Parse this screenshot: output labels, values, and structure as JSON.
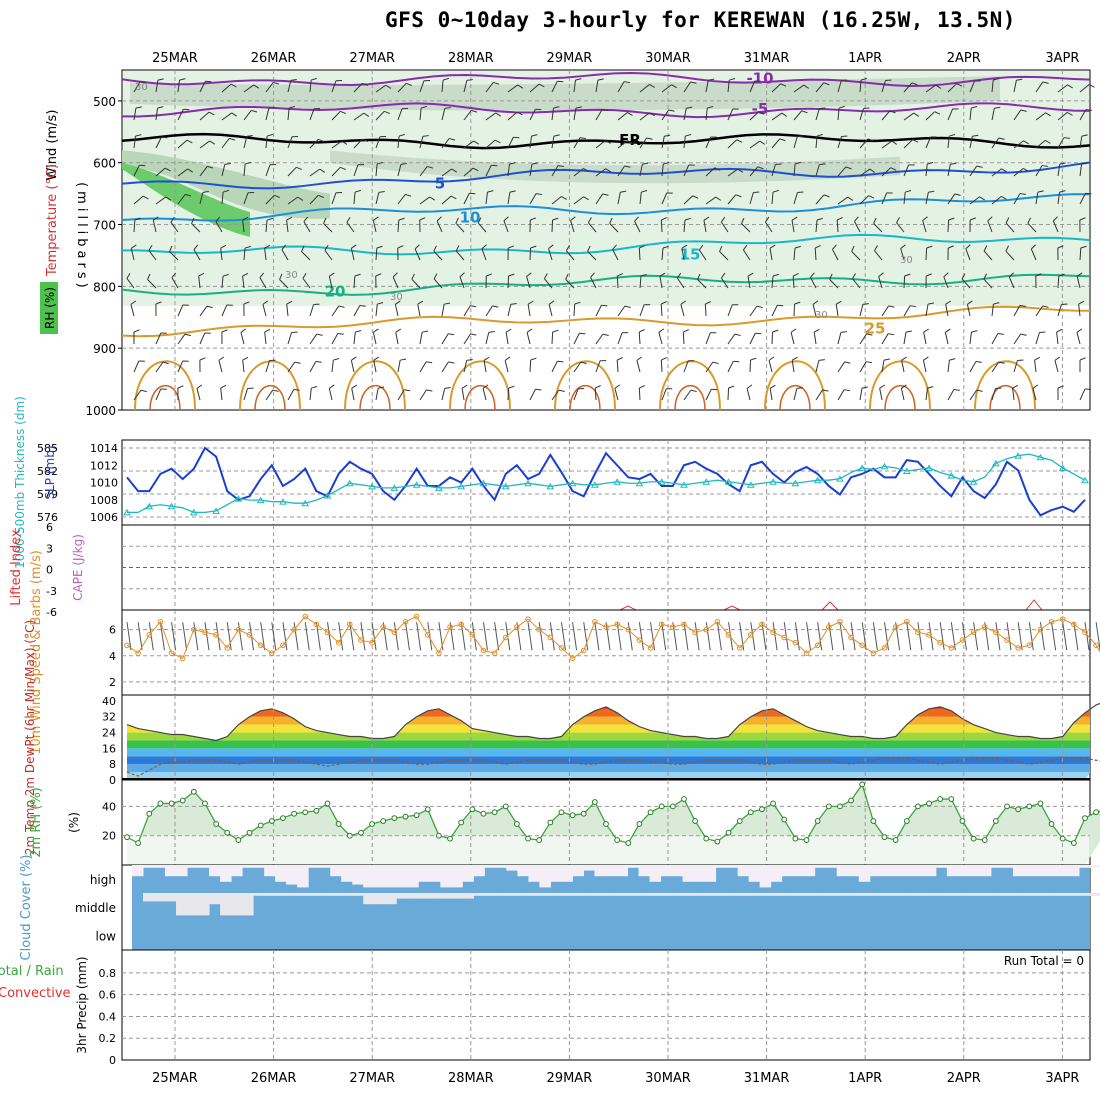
{
  "title": "GFS 0~10day 3-hourly for KEREWAN (16.25W, 13.5N)",
  "dates": [
    "25MAR",
    "26MAR",
    "27MAR",
    "28MAR",
    "29MAR",
    "30MAR",
    "31MAR",
    "1APR",
    "2APR",
    "3APR"
  ],
  "colors": {
    "wind_rh_green": "#4fc14f",
    "slp": "#1a3fd0",
    "thickness": "#20b8c0",
    "lifted_index": "#e03030",
    "cape": "#c060c0",
    "wind_speed": "#e0902a",
    "rh2m": "#3aa83a",
    "cloud": "#6aaad8",
    "precip_total": "#3aa83a",
    "precip_conv": "#e03030"
  },
  "chart_data": [
    {
      "panel": "upper_air",
      "type": "heatmap",
      "ylabel": "(millibars)",
      "side_labels": [
        "Wind (m/s)",
        "Temperature (°C)",
        "RH (%)"
      ],
      "ylim": [
        1000,
        450
      ],
      "yticks": [
        500,
        600,
        700,
        800,
        900,
        1000
      ],
      "isotherms": [
        {
          "label": "-10",
          "level_mb": 465,
          "color": "#8a2ab0"
        },
        {
          "label": "-5",
          "level_mb": 515,
          "color": "#8a2ab0"
        },
        {
          "label": "FR",
          "level_mb": 565,
          "color": "#000000"
        },
        {
          "label": "5",
          "level_mb": 635,
          "color": "#2050d0"
        },
        {
          "label": "10",
          "level_mb": 690,
          "color": "#1a90d8"
        },
        {
          "label": "15",
          "level_mb": 750,
          "color": "#18b8c8"
        },
        {
          "label": "20",
          "level_mb": 810,
          "color": "#18b080"
        },
        {
          "label": "25",
          "level_mb": 870,
          "color": "#d89a2a"
        }
      ],
      "rh_labels": [
        "30",
        "30",
        "30",
        "30",
        "30"
      ]
    },
    {
      "panel": "slp_thickness",
      "type": "line",
      "ylabel_left": "1000-500mb Thickness (dm)",
      "ylabel_right": "SLP (mb)",
      "thickness_ticks": [
        576,
        579,
        582,
        585
      ],
      "slp_ticks": [
        1006,
        1008,
        1010,
        1012,
        1014
      ],
      "slp_values": [
        1010.6,
        1009,
        1009,
        1011,
        1011.6,
        1010.4,
        1011.6,
        1014,
        1013,
        1009,
        1008,
        1008.4,
        1010.4,
        1012,
        1009.6,
        1010.4,
        1011.6,
        1009,
        1008.4,
        1011,
        1012.4,
        1011.6,
        1011,
        1009,
        1008,
        1009.6,
        1011.6,
        1009.6,
        1009.6,
        1010.6,
        1010,
        1011.6,
        1009.6,
        1008,
        1011,
        1012,
        1010.4,
        1011,
        1013.2,
        1011.2,
        1009,
        1008.4,
        1011,
        1013.4,
        1012,
        1010.6,
        1010.4,
        1011,
        1009.6,
        1009.6,
        1012,
        1012.4,
        1011.6,
        1011,
        1009.8,
        1009,
        1012,
        1012.4,
        1011,
        1010,
        1011.2,
        1011.8,
        1011,
        1009.6,
        1008.6,
        1010.6,
        1011,
        1011.6,
        1010.6,
        1010.6,
        1012.6,
        1012.4,
        1011,
        1009.6,
        1008.4,
        1010.6,
        1009,
        1008.2,
        1009.8,
        1012.4,
        1011.4,
        1008,
        1006.2,
        1006.8,
        1007.2,
        1006.6,
        1008
      ],
      "thickness_values": [
        576.6,
        576.6,
        577.4,
        577.6,
        577.4,
        577.2,
        576.6,
        576.6,
        576.8,
        577.6,
        578.4,
        578.2,
        578.2,
        578,
        578,
        577.8,
        577.8,
        578.2,
        578.8,
        579.6,
        580.4,
        580.2,
        580,
        579.8,
        579.8,
        580,
        580.2,
        580,
        579.8,
        579.8,
        580,
        580.2,
        580.4,
        580.2,
        580,
        580.2,
        580.4,
        580.2,
        580,
        580.2,
        580.4,
        580.2,
        580.2,
        580.4,
        580.6,
        580.4,
        580.4,
        580.6,
        580.6,
        580.4,
        580.2,
        580.4,
        580.6,
        580.8,
        580.6,
        580.4,
        580.2,
        580.4,
        580.6,
        580.4,
        580.4,
        580.6,
        580.8,
        580.8,
        581,
        581.8,
        582.4,
        582.2,
        582.6,
        582.4,
        582,
        582.2,
        582.4,
        581.8,
        581.4,
        580.8,
        580.6,
        581.2,
        583,
        583.6,
        584,
        584.2,
        583.8,
        583.4,
        582.4,
        581.6,
        580.8
      ]
    },
    {
      "panel": "stability",
      "type": "line",
      "ylabel_left": "Lifted Index",
      "ylabel_right": "CAPE (J/kg)",
      "yticks": [
        "6",
        "3",
        "0",
        "-3",
        "-6"
      ],
      "ylim": [
        6,
        -6
      ],
      "lifted_index_values": []
    },
    {
      "panel": "wind10m",
      "type": "line",
      "ylabel": "10m Wind Speed & Barbs (m/s)",
      "yticks": [
        2,
        4,
        6
      ],
      "ylim": [
        1,
        7.5
      ],
      "values": [
        4.8,
        4.2,
        5.6,
        6.6,
        4.2,
        3.8,
        6,
        5.8,
        5.6,
        4.6,
        6,
        5.6,
        4.8,
        4.2,
        4.8,
        6,
        7,
        6.4,
        5.8,
        5,
        6.4,
        5.2,
        5,
        6.2,
        5.8,
        6.6,
        7,
        5.6,
        4.2,
        6.2,
        6.4,
        5.6,
        4.4,
        4.2,
        5.4,
        6.2,
        6.8,
        6,
        5.4,
        4.6,
        3.8,
        4.4,
        6.6,
        6.2,
        6.4,
        6,
        5.2,
        4.6,
        6.4,
        6.2,
        6.4,
        5.8,
        6,
        6.6,
        5.6,
        4.6,
        5.6,
        6.4,
        5.8,
        5.4,
        5,
        4.2,
        4.8,
        6.2,
        6.6,
        5.4,
        4.8,
        4.2,
        4.6,
        6.2,
        6.6,
        5.8,
        5.6,
        5,
        4.6,
        5.2,
        5.8,
        6.2,
        5.8,
        5.2,
        4.6,
        4.8,
        6,
        6.6,
        6.8,
        6.4,
        5.8,
        4.8,
        3.4,
        2.2,
        1.4
      ]
    },
    {
      "panel": "temperature",
      "type": "area",
      "ylabel": "2m Temp 2m DewPt (6hr Min/Max) (°C)",
      "yticks": [
        0,
        8,
        16,
        24,
        32,
        40
      ],
      "ylim": [
        0,
        43
      ],
      "temp_values": [
        28,
        26,
        25,
        24,
        23,
        23,
        22,
        21,
        20,
        22,
        28,
        32,
        35,
        36,
        34,
        31,
        27,
        25,
        24,
        23,
        22,
        22,
        21,
        21,
        22,
        28,
        32,
        35,
        36,
        33,
        30,
        26,
        25,
        24,
        23,
        22,
        22,
        21,
        21,
        22,
        28,
        32,
        35,
        37,
        34,
        30,
        27,
        25,
        24,
        23,
        22,
        22,
        21,
        21,
        22,
        28,
        32,
        35,
        36,
        33,
        30,
        27,
        25,
        24,
        23,
        22,
        22,
        21,
        21,
        22,
        28,
        33,
        36,
        37,
        35,
        31,
        28,
        26,
        24,
        23,
        22,
        22,
        21,
        21,
        22,
        29,
        34,
        38,
        40,
        37,
        32
      ],
      "dewpoint_values": [
        4,
        2,
        5,
        8,
        9,
        9,
        10,
        10,
        10,
        9,
        8,
        9,
        10,
        10,
        10,
        10,
        9,
        8,
        7,
        8,
        9,
        10,
        10,
        10,
        10,
        9,
        8,
        8,
        9,
        10,
        10,
        10,
        10,
        9,
        8,
        9,
        10,
        10,
        10,
        10,
        9,
        8,
        8,
        9,
        10,
        10,
        10,
        9,
        9,
        8,
        8,
        9,
        10,
        10,
        10,
        10,
        9,
        8,
        8,
        9,
        10,
        10,
        10,
        10,
        9,
        8,
        9,
        10,
        11,
        11,
        11,
        10,
        9,
        8,
        9,
        10,
        11,
        11,
        11,
        10,
        9,
        8,
        9,
        10,
        11,
        11,
        11,
        10,
        9,
        8,
        10
      ]
    },
    {
      "panel": "rh2m",
      "type": "area",
      "ylabel": "2m RH (%)",
      "yticks": [
        20,
        40
      ],
      "ylim": [
        0,
        58
      ],
      "values": [
        19,
        15,
        35,
        42,
        42,
        44,
        50,
        42,
        28,
        22,
        17,
        22,
        27,
        30,
        32,
        35,
        36,
        37,
        42,
        28,
        20,
        22,
        28,
        30,
        32,
        33,
        34,
        38,
        20,
        18,
        29,
        38,
        35,
        36,
        40,
        28,
        18,
        17,
        29,
        36,
        34,
        35,
        43,
        28,
        17,
        15,
        28,
        36,
        40,
        40,
        45,
        30,
        18,
        16,
        22,
        30,
        36,
        38,
        42,
        31,
        18,
        17,
        30,
        40,
        40,
        44,
        55,
        30,
        19,
        17,
        30,
        40,
        42,
        45,
        45,
        30,
        18,
        17,
        30,
        40,
        38,
        40,
        42,
        28,
        18,
        15,
        32,
        36,
        38,
        40,
        48
      ]
    },
    {
      "panel": "cloud",
      "type": "area",
      "ylabel": "Cloud Cover (%)",
      "levels": [
        "high",
        "middle",
        "low"
      ],
      "high_pct": [
        60,
        90,
        90,
        60,
        60,
        90,
        90,
        60,
        40,
        60,
        90,
        90,
        60,
        40,
        30,
        20,
        90,
        90,
        60,
        40,
        30,
        20,
        20,
        20,
        20,
        20,
        40,
        40,
        20,
        20,
        40,
        60,
        90,
        90,
        80,
        60,
        40,
        20,
        40,
        40,
        60,
        80,
        60,
        60,
        60,
        90,
        60,
        40,
        60,
        60,
        40,
        40,
        40,
        90,
        90,
        60,
        40,
        20,
        40,
        60,
        60,
        60,
        90,
        90,
        60,
        60,
        40,
        60,
        60,
        60,
        60,
        60,
        60,
        90,
        60,
        60,
        60,
        60,
        90,
        90,
        60,
        60,
        60,
        60,
        60,
        60,
        90,
        90,
        60,
        60,
        60
      ],
      "middle_pct": [
        80,
        90,
        90,
        90,
        90,
        90,
        90,
        90,
        90,
        90,
        90,
        90,
        90,
        90,
        90,
        90,
        90,
        90,
        90,
        90,
        90,
        90,
        90,
        90,
        90,
        90,
        90,
        90,
        90,
        90,
        90,
        90,
        90,
        90,
        90,
        90,
        90,
        90,
        90,
        90,
        90,
        90,
        90,
        90,
        90,
        90,
        90,
        90,
        90,
        90,
        90,
        90,
        90,
        90,
        90,
        90,
        90,
        90,
        90,
        90,
        90,
        90,
        90,
        90,
        90,
        90,
        90,
        90,
        90,
        90,
        90,
        90,
        90,
        90,
        90,
        90,
        90,
        90,
        90,
        90,
        90,
        90,
        90,
        90,
        90,
        90,
        90,
        90,
        90,
        90,
        90
      ],
      "middle_gap": [
        0,
        30,
        30,
        30,
        80,
        80,
        80,
        40,
        80,
        80,
        80,
        10,
        10,
        10,
        10,
        10,
        10,
        10,
        10,
        10,
        10,
        40,
        40,
        40,
        20,
        20,
        20,
        20,
        20,
        20,
        20,
        10,
        10,
        10,
        10,
        10,
        10,
        10,
        10,
        10,
        10,
        10,
        10,
        10,
        10,
        10,
        10,
        10,
        10,
        10,
        10,
        10,
        10,
        10,
        10,
        10,
        10,
        10,
        10,
        10,
        10,
        10,
        10,
        10,
        10,
        10,
        10,
        10,
        10,
        10,
        10,
        10,
        10,
        10,
        10,
        10,
        10,
        10,
        10,
        10,
        10,
        10,
        10,
        10,
        10,
        10,
        10,
        10,
        10,
        10,
        10
      ]
    },
    {
      "panel": "precip",
      "type": "bar",
      "ylabel_left": "Total / Rain Convective",
      "ylabel_right": "3hr Precip (mm)",
      "yticks": [
        "0",
        "0.2",
        "0.4",
        "0.6",
        "0.8"
      ],
      "ylim": [
        0,
        1
      ],
      "annotation": "Run Total = 0",
      "values": []
    }
  ]
}
